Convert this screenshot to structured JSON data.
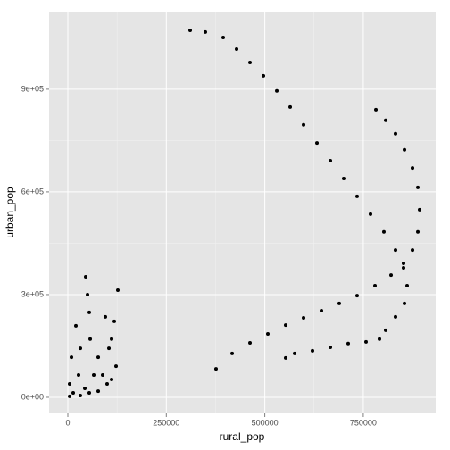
{
  "chart_data": {
    "type": "scatter",
    "x_label": "rural_pop",
    "y_label": "urban_pop",
    "xlim": [
      -47600,
      933800
    ],
    "ylim": [
      -47000,
      1124000
    ],
    "xticks": [
      0,
      250000,
      500000,
      750000
    ],
    "yticks": [
      {
        "value": 0,
        "label": "0e+00"
      },
      {
        "value": 300000,
        "label": "3e+05"
      },
      {
        "value": 600000,
        "label": "6e+05"
      },
      {
        "value": 900000,
        "label": "9e+05"
      }
    ],
    "grid": true,
    "color": "#000000",
    "x": [
      310500,
      349000,
      394400,
      428400,
      462400,
      496400,
      530400,
      564400,
      598400,
      632400,
      666400,
      700300,
      734300,
      768300,
      802300,
      831800,
      852200,
      861300,
      854500,
      831800,
      806900,
      791000,
      757000,
      711700,
      666400,
      621000,
      575700,
      553000,
      782000,
      806900,
      831800,
      854500,
      874900,
      888500,
      893000,
      888500,
      874900,
      852200,
      820500,
      779700,
      734300,
      689000,
      643700,
      598400,
      553000,
      507700,
      462400,
      417100,
      376200,
      45300,
      49900,
      54400,
      56700,
      20400,
      31700,
      9100,
      4500,
      126900,
      117900,
      104300,
      88400,
      95200,
      111100,
      77100,
      65700,
      43100,
      122400,
      99700,
      27200,
      13600,
      54400,
      77100,
      31700,
      4500,
      111100
    ],
    "values": [
      1072000,
      1067000,
      1051000,
      1017000,
      978000,
      939000,
      895000,
      848000,
      796000,
      743000,
      691000,
      639000,
      587000,
      535000,
      483000,
      430000,
      378000,
      326000,
      274000,
      235000,
      196000,
      170000,
      162000,
      157000,
      146000,
      136000,
      128000,
      115000,
      840000,
      809000,
      770000,
      723000,
      670000,
      613000,
      548000,
      483000,
      430000,
      391000,
      357000,
      326000,
      297000,
      274000,
      253000,
      232000,
      211000,
      185000,
      159000,
      128000,
      83000,
      352000,
      300000,
      248000,
      170000,
      209000,
      143000,
      117000,
      39000,
      313000,
      222000,
      143000,
      65000,
      235000,
      170000,
      117000,
      65000,
      26000,
      91000,
      39000,
      65000,
      13000,
      13000,
      18000,
      5000,
      3000,
      52000
    ]
  }
}
